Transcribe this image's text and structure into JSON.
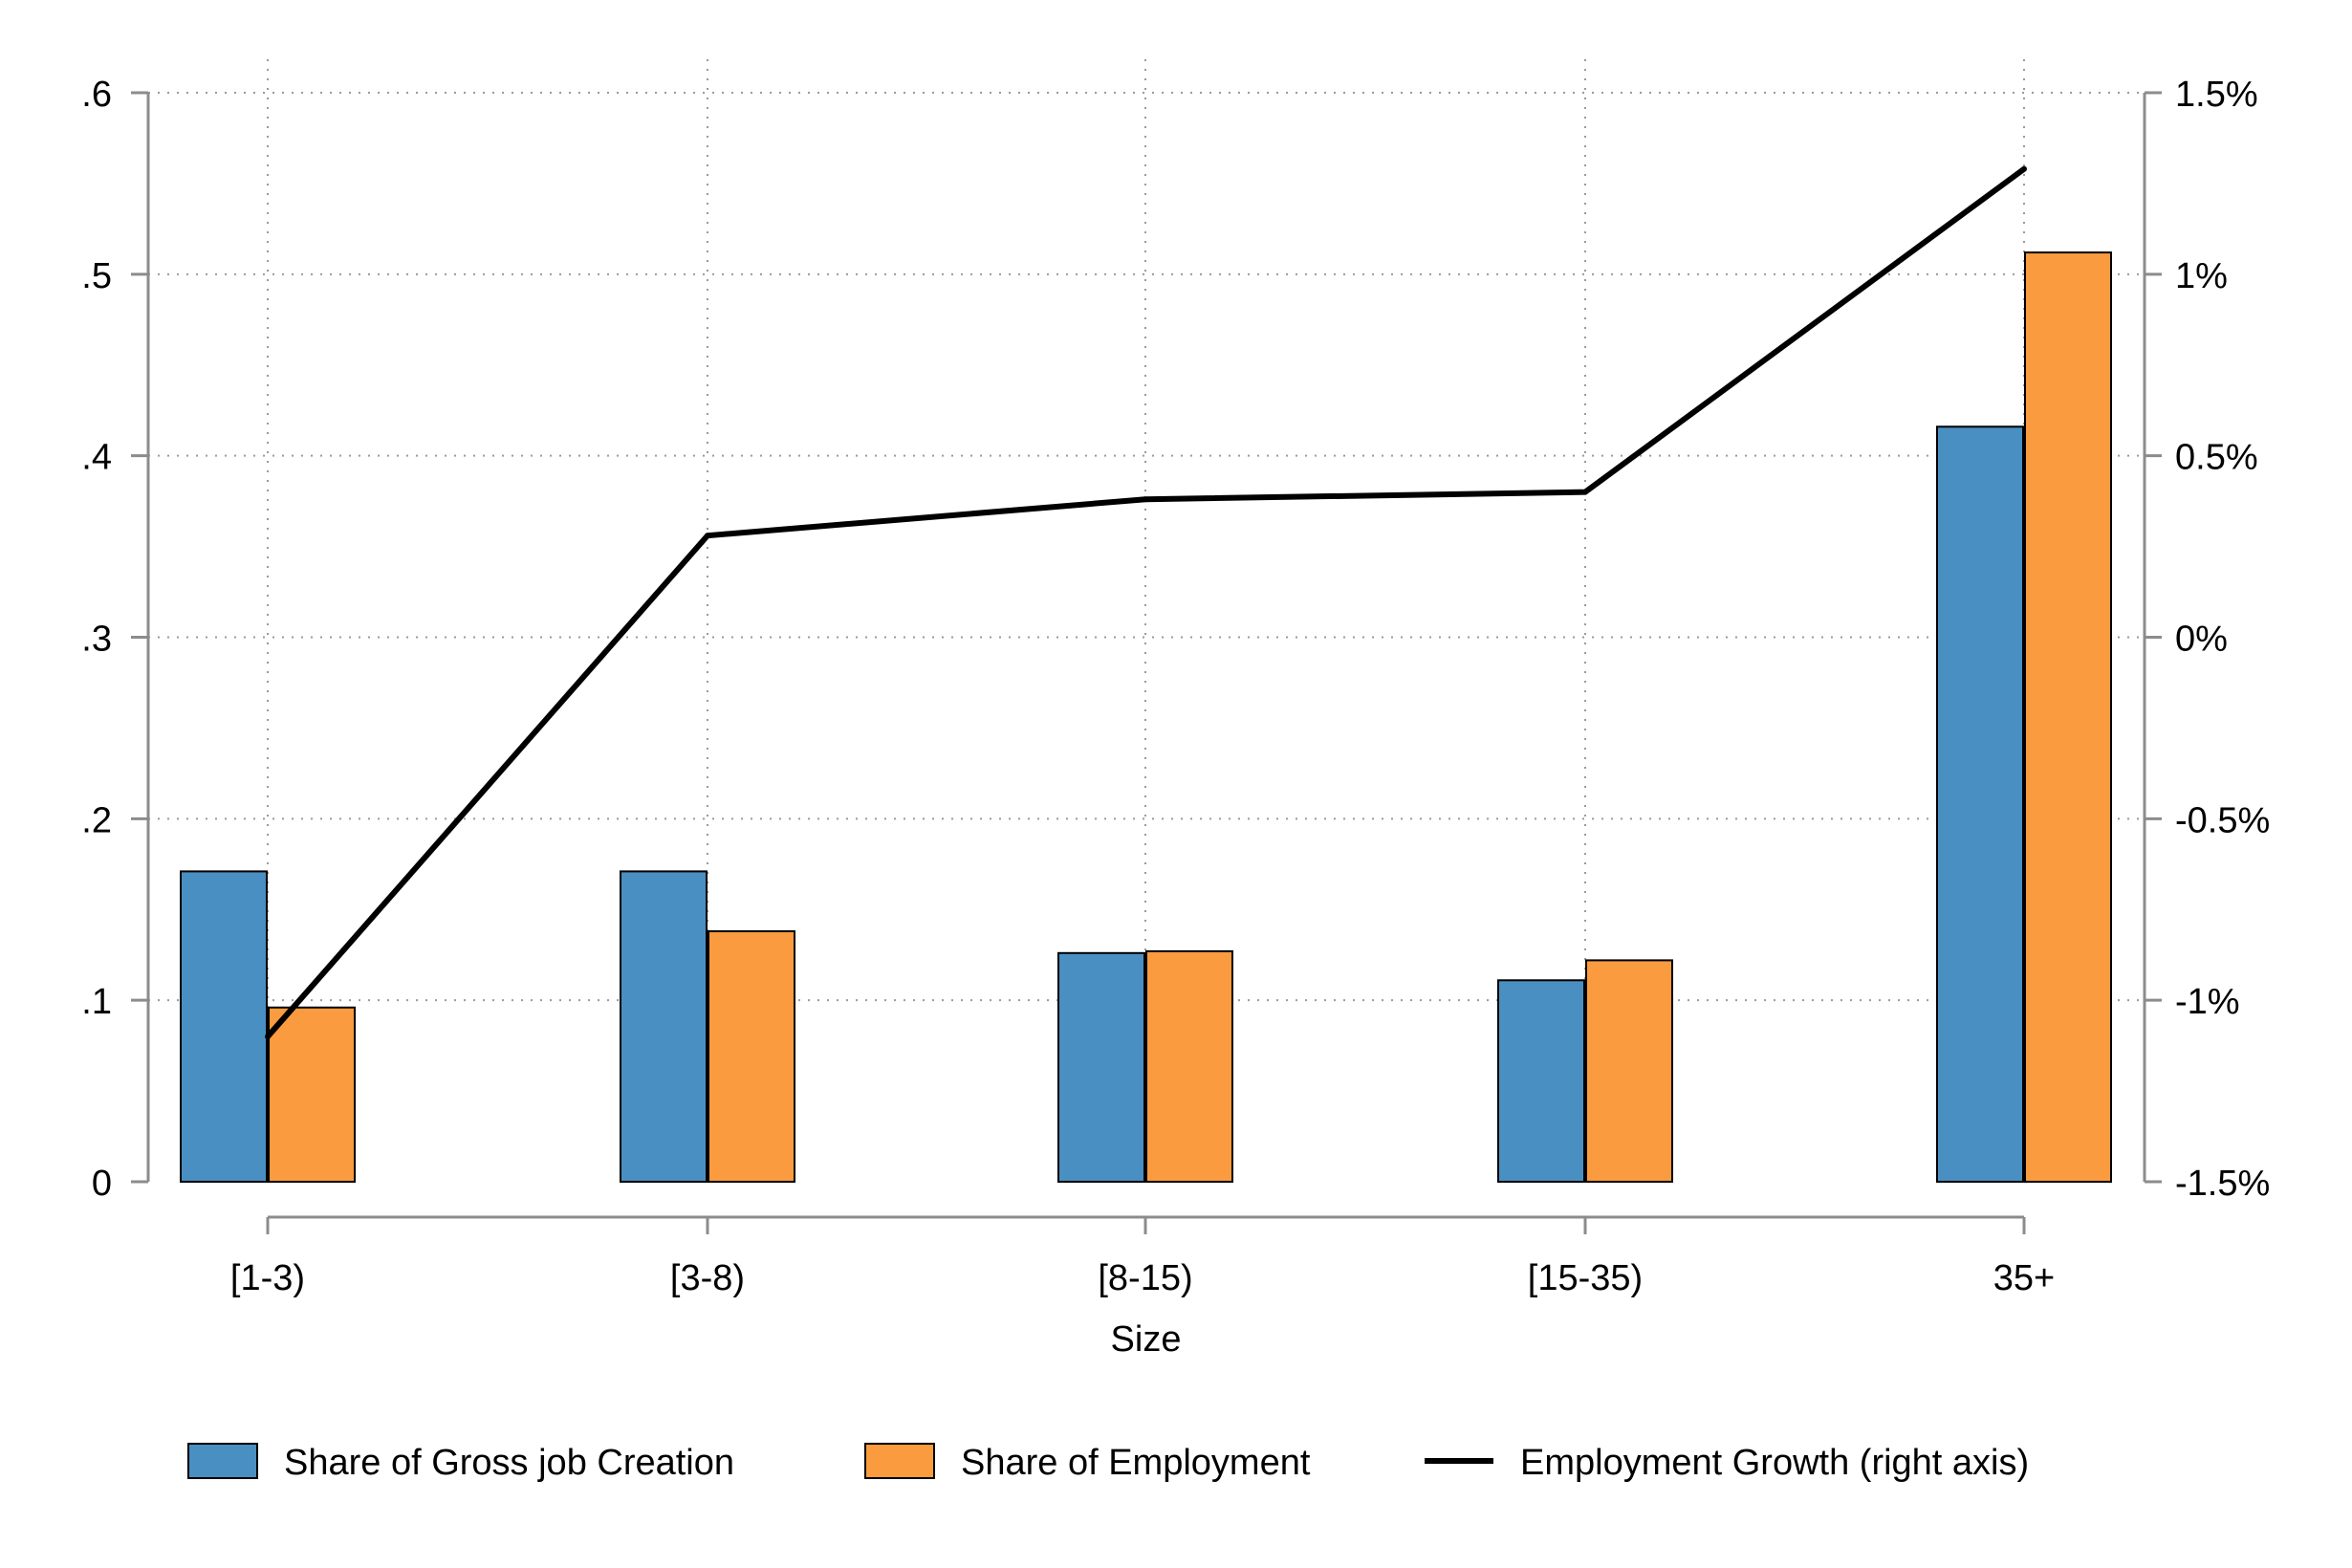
{
  "chart_data": {
    "type": "bar",
    "xlabel": "Size",
    "categories": [
      "[1-3)",
      "[3-8)",
      "[8-15)",
      "[15-35)",
      "35+"
    ],
    "series": [
      {
        "name": "Share of Gross job Creation",
        "kind": "bar",
        "axis": "left",
        "color": "#4a8fc2",
        "values": [
          0.171,
          0.171,
          0.126,
          0.111,
          0.416
        ]
      },
      {
        "name": "Share of Employment",
        "kind": "bar",
        "axis": "left",
        "color": "#f99b3e",
        "values": [
          0.096,
          0.138,
          0.127,
          0.122,
          0.512
        ]
      },
      {
        "name": "Employment Growth (right axis)",
        "kind": "line",
        "axis": "right",
        "color": "#000000",
        "values": [
          -1.1,
          0.28,
          0.38,
          0.4,
          1.29
        ]
      }
    ],
    "ylim": [
      0,
      0.6
    ],
    "yticks": [
      0,
      0.1,
      0.2,
      0.3,
      0.4,
      0.5,
      0.6
    ],
    "ytick_labels": [
      "0",
      ".1",
      ".2",
      ".3",
      ".4",
      ".5",
      ".6"
    ],
    "y2lim": [
      -1.5,
      1.5
    ],
    "y2ticks": [
      -1.5,
      -1,
      -0.5,
      0,
      0.5,
      1,
      1.5
    ],
    "y2tick_labels": [
      "-1.5%",
      "-1%",
      "-0.5%",
      "0%",
      "0.5%",
      "1%",
      "1.5%"
    ],
    "grid": true,
    "legend_position": "bottom"
  }
}
